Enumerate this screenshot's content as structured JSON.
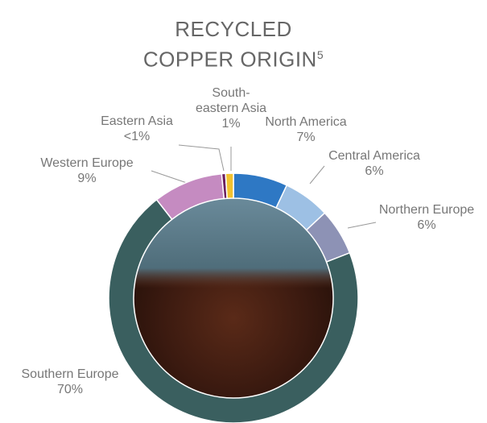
{
  "chart_data": {
    "type": "pie",
    "title": "RECYCLED COPPER ORIGIN",
    "title_footnote": "5",
    "categories": [
      "North America",
      "Central America",
      "Northern Europe",
      "Southern Europe",
      "Western Europe",
      "Eastern Asia",
      "South-eastern Asia"
    ],
    "values": [
      7,
      6,
      6,
      70,
      9,
      0.5,
      1
    ],
    "value_labels": [
      "7%",
      "6%",
      "6%",
      "70%",
      "9%",
      "<1%",
      "1%"
    ],
    "colors": [
      "#2e78c4",
      "#9dc0e4",
      "#8d92b5",
      "#3a5f5f",
      "#c58bc1",
      "#6b1f5e",
      "#f2c230"
    ]
  }
}
